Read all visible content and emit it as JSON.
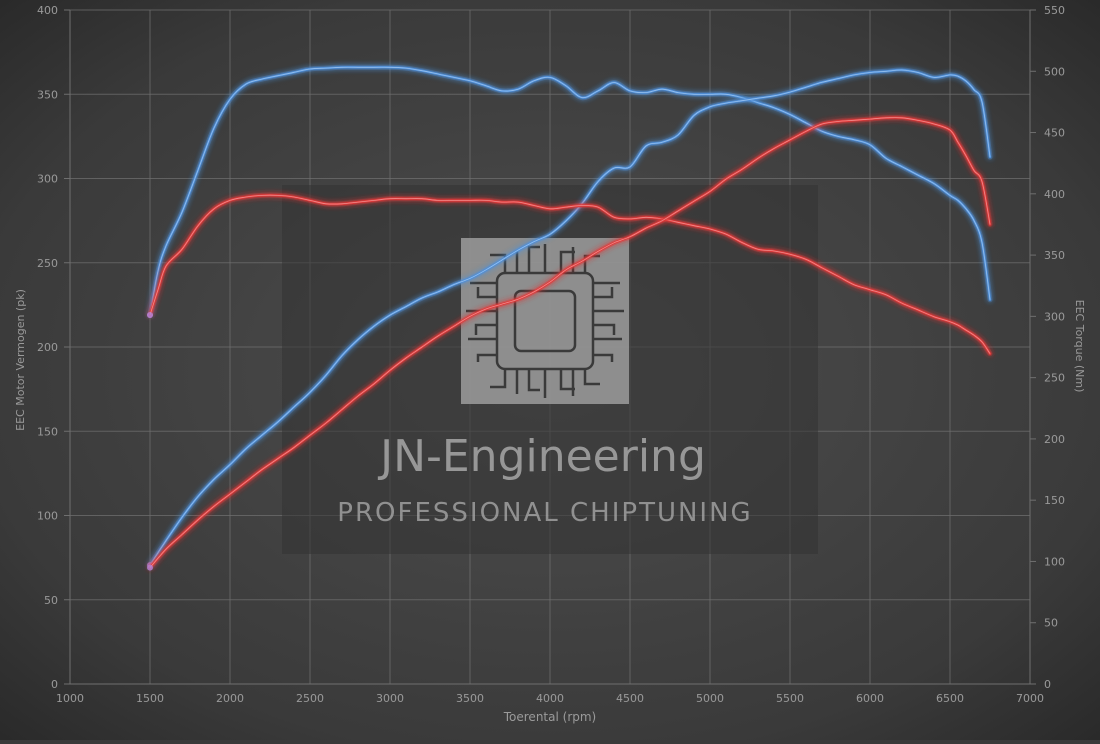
{
  "watermark": {
    "title": "JN-Engineering",
    "subtitle": "PROFESSIONAL CHIPTUNING",
    "logo": "circuit-chip-logo"
  },
  "chart_data": {
    "type": "line",
    "title": "",
    "xlabel": "Toerental (rpm)",
    "ylabel_left": "EEC Motor Vermogen (pk)",
    "ylabel_right": "EEC Torque (Nm)",
    "xlim": [
      1000,
      7000
    ],
    "ylim_left": [
      0,
      400
    ],
    "ylim_right": [
      0,
      550
    ],
    "x_ticks": [
      1000,
      1500,
      2000,
      2500,
      3000,
      3500,
      4000,
      4500,
      5000,
      5500,
      6000,
      6500,
      7000
    ],
    "y_ticks_left": [
      0,
      50,
      100,
      150,
      200,
      250,
      300,
      350,
      400
    ],
    "y_ticks_right": [
      0,
      50,
      100,
      150,
      200,
      250,
      300,
      350,
      400,
      450,
      500,
      550
    ],
    "grid": true,
    "colors": {
      "background_center": "#4d4d4d",
      "background_edge": "#2a2a2a",
      "grid": "#6f6f6f",
      "axis_text": "#9a9a9a",
      "tuned": "#4f8fd8",
      "stock": "#e03a3a"
    },
    "series": [
      {
        "axis": "left",
        "color": "#4f8fd8",
        "x": [
          1500,
          1550,
          1600,
          1700,
          1800,
          1900,
          2000,
          2100,
          2200,
          2300,
          2400,
          2500,
          2600,
          2700,
          2800,
          2900,
          3000,
          3100,
          3200,
          3300,
          3400,
          3500,
          3600,
          3700,
          3800,
          3900,
          4000,
          4100,
          4200,
          4300,
          4400,
          4500,
          4600,
          4700,
          4800,
          4900,
          5000,
          5100,
          5200,
          5300,
          5400,
          5500,
          5600,
          5700,
          5800,
          5900,
          6000,
          6100,
          6200,
          6300,
          6400,
          6500,
          6550,
          6600,
          6650,
          6700,
          6750
        ],
        "values": [
          219,
          245,
          260,
          280,
          305,
          330,
          347,
          356,
          359,
          361,
          363,
          365,
          365.5,
          366,
          366,
          366,
          366,
          365.5,
          364,
          362,
          360,
          358,
          355,
          352,
          353,
          358,
          360,
          355,
          348,
          352,
          357,
          352,
          351,
          353,
          351,
          350,
          350,
          350,
          348,
          345,
          342,
          338,
          333,
          328,
          325,
          323,
          320,
          312,
          307,
          302,
          297,
          290,
          287,
          282,
          275,
          262,
          228
        ]
      },
      {
        "axis": "right",
        "color": "#4f8fd8",
        "x": [
          1500,
          1600,
          1700,
          1800,
          1900,
          2000,
          2100,
          2200,
          2300,
          2400,
          2500,
          2600,
          2700,
          2800,
          2900,
          3000,
          3100,
          3200,
          3300,
          3400,
          3500,
          3600,
          3700,
          3800,
          3900,
          4000,
          4100,
          4200,
          4300,
          4400,
          4500,
          4600,
          4700,
          4800,
          4900,
          5000,
          5100,
          5200,
          5300,
          5400,
          5500,
          5600,
          5700,
          5800,
          5900,
          6000,
          6100,
          6200,
          6300,
          6400,
          6500,
          6550,
          6600,
          6650,
          6700,
          6750
        ],
        "values": [
          97,
          117,
          136,
          153,
          167,
          179,
          192,
          203,
          214,
          226,
          238,
          252,
          268,
          281,
          292,
          301,
          308,
          315,
          320,
          326,
          331,
          338,
          346,
          354,
          361,
          367,
          378,
          392,
          410,
          421,
          422,
          439,
          442,
          448,
          464,
          471,
          474,
          476,
          478,
          480,
          483,
          487,
          491,
          494,
          497,
          499,
          500,
          501,
          499,
          495,
          497,
          496,
          492,
          485,
          475,
          430
        ]
      },
      {
        "axis": "left",
        "color": "#e03a3a",
        "x": [
          1500,
          1550,
          1600,
          1700,
          1800,
          1900,
          2000,
          2100,
          2200,
          2300,
          2400,
          2500,
          2600,
          2700,
          2800,
          2900,
          3000,
          3100,
          3200,
          3300,
          3400,
          3500,
          3600,
          3700,
          3800,
          3900,
          4000,
          4100,
          4200,
          4300,
          4400,
          4500,
          4600,
          4700,
          4800,
          4900,
          5000,
          5100,
          5200,
          5300,
          5400,
          5500,
          5600,
          5700,
          5800,
          5900,
          6000,
          6100,
          6200,
          6300,
          6400,
          6500,
          6550,
          6600,
          6650,
          6700,
          6750
        ],
        "values": [
          219,
          234,
          248,
          258,
          272,
          282,
          287,
          289,
          290,
          290,
          289,
          287,
          285,
          285,
          286,
          287,
          288,
          288,
          288,
          287,
          287,
          287,
          287,
          286,
          286,
          284,
          282,
          283,
          284,
          283,
          277,
          276,
          277,
          276,
          274,
          272,
          270,
          267,
          262,
          258,
          257,
          255,
          252,
          247,
          242,
          237,
          234,
          231,
          226,
          222,
          218,
          215,
          213,
          210,
          207,
          203,
          196
        ]
      },
      {
        "axis": "right",
        "color": "#e03a3a",
        "x": [
          1500,
          1600,
          1700,
          1800,
          1900,
          2000,
          2100,
          2200,
          2300,
          2400,
          2500,
          2600,
          2700,
          2800,
          2900,
          3000,
          3100,
          3200,
          3300,
          3400,
          3500,
          3600,
          3700,
          3800,
          3900,
          4000,
          4100,
          4200,
          4300,
          4400,
          4500,
          4600,
          4700,
          4800,
          4900,
          5000,
          5100,
          5200,
          5300,
          5400,
          5500,
          5600,
          5700,
          5800,
          5900,
          6000,
          6100,
          6200,
          6300,
          6400,
          6500,
          6550,
          6600,
          6650,
          6700,
          6750
        ],
        "values": [
          95,
          110,
          122,
          134,
          145,
          155,
          165,
          175,
          184,
          193,
          203,
          213,
          224,
          235,
          245,
          256,
          266,
          275,
          284,
          292,
          300,
          306,
          310,
          314,
          320,
          328,
          338,
          345,
          353,
          360,
          365,
          372,
          378,
          386,
          394,
          402,
          412,
          420,
          429,
          437,
          444,
          451,
          457,
          459,
          460,
          461,
          462,
          462,
          460,
          457,
          452,
          442,
          431,
          419,
          410,
          375
        ]
      }
    ]
  }
}
